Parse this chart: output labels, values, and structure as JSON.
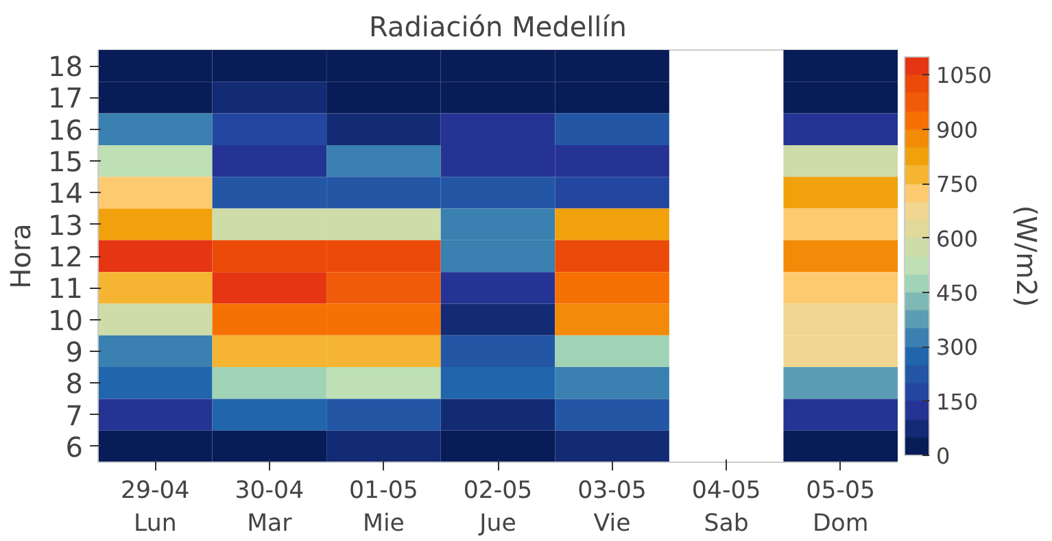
{
  "chart_data": {
    "type": "heatmap",
    "title": "Radiación Medellín",
    "ylabel": "Hora",
    "clabel": "(W/m2)",
    "categories": [
      "29-04\nLun",
      "30-04\nMar",
      "01-05\nMie",
      "02-05\nJue",
      "03-05\nVie",
      "04-05\nSab",
      "05-05\nDom"
    ],
    "y_categories": [
      "18",
      "17",
      "16",
      "15",
      "14",
      "13",
      "12",
      "11",
      "10",
      "9",
      "8",
      "7",
      "6"
    ],
    "cells": [
      [
        25,
        25,
        25,
        25,
        25,
        null,
        25
      ],
      [
        25,
        75,
        25,
        25,
        25,
        null,
        25
      ],
      [
        325,
        175,
        75,
        125,
        225,
        null,
        125
      ],
      [
        525,
        125,
        325,
        125,
        125,
        null,
        575
      ],
      [
        725,
        225,
        225,
        225,
        175,
        null,
        825
      ],
      [
        825,
        575,
        575,
        325,
        825,
        null,
        725
      ],
      [
        1075,
        1025,
        1025,
        325,
        1025,
        null,
        875
      ],
      [
        775,
        1075,
        975,
        125,
        925,
        null,
        725
      ],
      [
        575,
        925,
        925,
        75,
        875,
        null,
        675
      ],
      [
        325,
        775,
        775,
        225,
        475,
        null,
        675
      ],
      [
        275,
        475,
        525,
        275,
        325,
        null,
        375
      ],
      [
        125,
        275,
        225,
        75,
        225,
        null,
        125
      ],
      [
        25,
        25,
        75,
        25,
        75,
        null,
        25
      ]
    ],
    "clim": [
      0,
      1100
    ],
    "cticks": [
      0,
      150,
      300,
      450,
      600,
      750,
      900,
      1050
    ]
  }
}
